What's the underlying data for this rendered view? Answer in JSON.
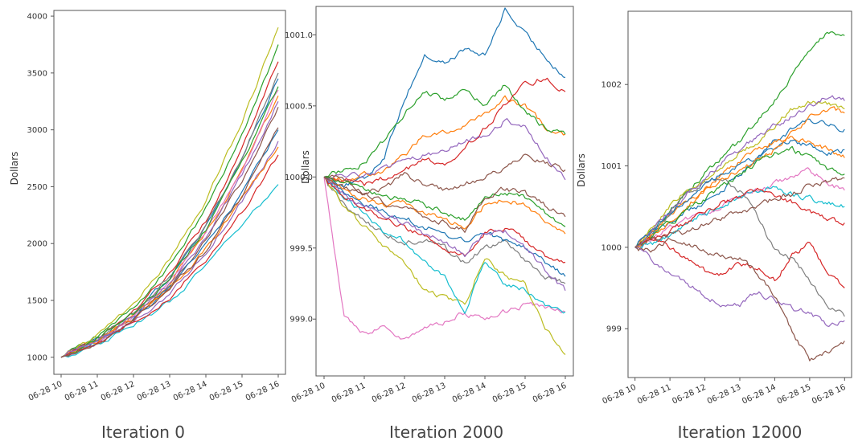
{
  "colors": [
    "#1f77b4",
    "#ff7f0e",
    "#2ca02c",
    "#d62728",
    "#9467bd",
    "#8c564b",
    "#e377c2",
    "#7f7f7f",
    "#bcbd22",
    "#17becf"
  ],
  "chart_data": [
    {
      "type": "line",
      "title": "Iteration 0",
      "ylabel": "Dollars",
      "xlabel": "",
      "xlim": [
        9.8,
        16.2
      ],
      "ylim": [
        850,
        4050
      ],
      "xticks": [
        10,
        11,
        12,
        13,
        14,
        15,
        16
      ],
      "xtick_labels": [
        "06-28 10",
        "06-28 11",
        "06-28 12",
        "06-28 13",
        "06-28 14",
        "06-28 15",
        "06-28 16"
      ],
      "yticks": [
        1000,
        1500,
        2000,
        2500,
        3000,
        3500,
        4000
      ],
      "ytick_labels": [
        "1000",
        "1500",
        "2000",
        "2500",
        "3000",
        "3500",
        "4000"
      ],
      "grid": false,
      "x": [
        10,
        11,
        12,
        13,
        14,
        15,
        16
      ],
      "series": [
        {
          "values": [
            1000,
            1160,
            1380,
            1700,
            2150,
            2750,
            3450
          ]
        },
        {
          "values": [
            1000,
            1150,
            1360,
            1660,
            2100,
            2650,
            3300
          ]
        },
        {
          "values": [
            1000,
            1180,
            1430,
            1800,
            2300,
            2950,
            3750
          ]
        },
        {
          "values": [
            1000,
            1170,
            1400,
            1740,
            2200,
            2820,
            3600
          ]
        },
        {
          "values": [
            1000,
            1130,
            1310,
            1560,
            1920,
            2380,
            2900
          ]
        },
        {
          "values": [
            1000,
            1140,
            1340,
            1630,
            2040,
            2560,
            3200
          ]
        },
        {
          "values": [
            1000,
            1150,
            1370,
            1680,
            2100,
            2660,
            3350
          ]
        },
        {
          "values": [
            1000,
            1160,
            1390,
            1710,
            2170,
            2760,
            3500
          ]
        },
        {
          "values": [
            1000,
            1190,
            1460,
            1850,
            2380,
            3060,
            3900
          ]
        },
        {
          "values": [
            1000,
            1110,
            1270,
            1490,
            1800,
            2150,
            2520
          ]
        },
        {
          "values": [
            1000,
            1140,
            1330,
            1600,
            1980,
            2450,
            3000
          ]
        },
        {
          "values": [
            1000,
            1140,
            1330,
            1590,
            1950,
            2400,
            2850
          ]
        },
        {
          "values": [
            1000,
            1160,
            1380,
            1690,
            2130,
            2700,
            3380
          ]
        },
        {
          "values": [
            1000,
            1120,
            1290,
            1530,
            1860,
            2280,
            2780
          ]
        },
        {
          "values": [
            1000,
            1150,
            1360,
            1650,
            2060,
            2600,
            3250
          ]
        },
        {
          "values": [
            1000,
            1130,
            1320,
            1580,
            1940,
            2420,
            3020
          ]
        }
      ]
    },
    {
      "type": "line",
      "title": "Iteration 2000",
      "ylabel": "Dollars",
      "xlabel": "",
      "xlim": [
        9.8,
        16.2
      ],
      "ylim": [
        998.6,
        1001.2
      ],
      "xticks": [
        10,
        11,
        12,
        13,
        14,
        15,
        16
      ],
      "xtick_labels": [
        "06-28 10",
        "06-28 11",
        "06-28 12",
        "06-28 13",
        "06-28 14",
        "06-28 15",
        "06-28 16"
      ],
      "yticks": [
        999.0,
        999.5,
        1000.0,
        1000.5,
        1001.0
      ],
      "ytick_labels": [
        "999.0",
        "999.5",
        "1000.0",
        "1000.5",
        "1001.0"
      ],
      "grid": false,
      "x": [
        10,
        10.5,
        11,
        11.5,
        12,
        12.5,
        13,
        13.5,
        14,
        14.5,
        15,
        15.5,
        16
      ],
      "series": [
        {
          "values": [
            1000.0,
            999.95,
            999.98,
            1000.15,
            1000.55,
            1000.85,
            1000.8,
            1000.9,
            1000.85,
            1001.18,
            1001.0,
            1000.85,
            1000.7
          ]
        },
        {
          "values": [
            1000.0,
            999.98,
            1000.02,
            1000.05,
            1000.15,
            1000.3,
            1000.32,
            1000.35,
            1000.45,
            1000.55,
            1000.5,
            1000.35,
            1000.3
          ]
        },
        {
          "values": [
            1000.0,
            1000.05,
            1000.1,
            1000.25,
            1000.45,
            1000.6,
            1000.55,
            1000.6,
            1000.5,
            1000.65,
            1000.45,
            1000.35,
            1000.3
          ]
        },
        {
          "values": [
            1000.0,
            999.98,
            999.95,
            999.99,
            1000.05,
            1000.12,
            1000.1,
            1000.2,
            1000.35,
            1000.5,
            1000.65,
            1000.7,
            1000.6
          ]
        },
        {
          "values": [
            1000.0,
            1000.0,
            1000.02,
            1000.05,
            1000.1,
            1000.15,
            1000.2,
            1000.25,
            1000.3,
            1000.4,
            1000.35,
            1000.15,
            999.98
          ]
        },
        {
          "values": [
            1000.0,
            999.98,
            999.9,
            999.92,
            1000.02,
            999.95,
            999.9,
            999.95,
            1000.0,
            1000.05,
            1000.15,
            1000.1,
            1000.05
          ]
        },
        {
          "values": [
            1000.0,
            999.0,
            998.9,
            998.95,
            998.85,
            998.95,
            998.98,
            999.05,
            998.98,
            999.05,
            999.1,
            999.08,
            999.05
          ]
        },
        {
          "values": [
            1000.0,
            999.8,
            999.7,
            999.6,
            999.55,
            999.55,
            999.5,
            999.4,
            999.5,
            999.55,
            999.4,
            999.3,
            999.25
          ]
        },
        {
          "values": [
            1000.0,
            999.8,
            999.65,
            999.5,
            999.4,
            999.2,
            999.15,
            999.1,
            999.45,
            999.3,
            999.25,
            998.95,
            998.75
          ]
        },
        {
          "values": [
            1000.0,
            999.85,
            999.75,
            999.6,
            999.55,
            999.4,
            999.3,
            999.05,
            999.4,
            999.25,
            999.2,
            999.1,
            999.05
          ]
        },
        {
          "values": [
            1000.0,
            999.9,
            999.82,
            999.75,
            999.72,
            999.65,
            999.6,
            999.55,
            999.6,
            999.55,
            999.5,
            999.4,
            999.3
          ]
        },
        {
          "values": [
            1000.0,
            999.9,
            999.85,
            999.8,
            999.82,
            999.75,
            999.7,
            999.65,
            999.8,
            999.85,
            999.8,
            999.7,
            999.6
          ]
        },
        {
          "values": [
            1000.0,
            999.95,
            999.92,
            999.85,
            999.85,
            999.8,
            999.75,
            999.7,
            999.85,
            999.9,
            999.85,
            999.75,
            999.65
          ]
        },
        {
          "values": [
            1000.0,
            999.85,
            999.78,
            999.7,
            999.65,
            999.58,
            999.5,
            999.45,
            999.6,
            999.65,
            999.55,
            999.45,
            999.4
          ]
        },
        {
          "values": [
            1000.0,
            999.88,
            999.8,
            999.72,
            999.68,
            999.6,
            999.55,
            999.45,
            999.6,
            999.62,
            999.5,
            999.35,
            999.2
          ]
        },
        {
          "values": [
            1000.0,
            999.92,
            999.88,
            999.82,
            999.78,
            999.72,
            999.68,
            999.62,
            999.85,
            999.92,
            999.88,
            999.8,
            999.72
          ]
        }
      ]
    },
    {
      "type": "line",
      "title": "Iteration 12000",
      "ylabel": "Dollars",
      "xlabel": "",
      "xlim": [
        9.8,
        16.2
      ],
      "ylim": [
        998.4,
        1002.9
      ],
      "xticks": [
        10,
        11,
        12,
        13,
        14,
        15,
        16
      ],
      "xtick_labels": [
        "06-28 10",
        "06-28 11",
        "06-28 12",
        "06-28 13",
        "06-28 14",
        "06-28 15",
        "06-28 16"
      ],
      "yticks": [
        999,
        1000,
        1001,
        1002
      ],
      "ytick_labels": [
        "999",
        "1000",
        "1001",
        "1002"
      ],
      "grid": false,
      "x": [
        10,
        10.5,
        11,
        11.5,
        12,
        12.5,
        13,
        13.5,
        14,
        14.5,
        15,
        15.5,
        16
      ],
      "series": [
        {
          "values": [
            1000.0,
            1000.15,
            1000.3,
            1000.45,
            1000.55,
            1000.7,
            1000.9,
            1001.1,
            1001.3,
            1001.45,
            1001.55,
            1001.5,
            1001.45
          ]
        },
        {
          "values": [
            1000.0,
            1000.2,
            1000.4,
            1000.55,
            1000.7,
            1000.9,
            1001.05,
            1001.2,
            1001.3,
            1001.35,
            1001.3,
            1001.2,
            1001.1
          ]
        },
        {
          "values": [
            1000.0,
            1000.2,
            1000.45,
            1000.7,
            1000.9,
            1001.1,
            1001.3,
            1001.55,
            1001.8,
            1002.1,
            1002.4,
            1002.65,
            1002.6
          ]
        },
        {
          "values": [
            1000.0,
            1000.1,
            1000.0,
            999.85,
            999.7,
            999.65,
            999.8,
            999.75,
            999.6,
            999.9,
            1000.05,
            999.7,
            999.5
          ]
        },
        {
          "values": [
            1000.0,
            999.85,
            999.65,
            999.55,
            999.4,
            999.3,
            999.3,
            999.45,
            999.35,
            999.25,
            999.2,
            999.05,
            999.1
          ]
        },
        {
          "values": [
            1000.0,
            999.95,
            1000.1,
            1000.05,
            999.95,
            999.9,
            999.85,
            999.7,
            999.4,
            998.95,
            998.6,
            998.7,
            998.85
          ]
        },
        {
          "values": [
            1000.0,
            1000.1,
            1000.25,
            1000.35,
            1000.4,
            1000.5,
            1000.6,
            1000.7,
            1000.8,
            1000.85,
            1000.95,
            1000.8,
            1000.7
          ]
        },
        {
          "values": [
            1000.0,
            1000.2,
            1000.4,
            1000.65,
            1000.8,
            1000.85,
            1000.7,
            1000.4,
            999.95,
            999.85,
            999.6,
            999.3,
            999.15
          ]
        },
        {
          "values": [
            1000.0,
            1000.25,
            1000.5,
            1000.7,
            1000.85,
            1001.0,
            1001.15,
            1001.3,
            1001.5,
            1001.7,
            1001.8,
            1001.75,
            1001.7
          ]
        },
        {
          "values": [
            1000.0,
            1000.05,
            1000.15,
            1000.3,
            1000.4,
            1000.5,
            1000.6,
            1000.7,
            1000.75,
            1000.65,
            1000.6,
            1000.55,
            1000.5
          ]
        },
        {
          "values": [
            1000.0,
            1000.2,
            1000.4,
            1000.6,
            1000.75,
            1000.9,
            1001.0,
            1001.1,
            1001.2,
            1001.3,
            1001.25,
            1001.15,
            1001.2
          ]
        },
        {
          "values": [
            1000.0,
            1000.15,
            1000.3,
            1000.5,
            1000.7,
            1000.85,
            1000.95,
            1001.05,
            1001.2,
            1001.4,
            1001.6,
            1001.7,
            1001.65
          ]
        },
        {
          "values": [
            1000.0,
            1000.15,
            1000.3,
            1000.45,
            1000.6,
            1000.75,
            1000.9,
            1001.05,
            1001.15,
            1001.2,
            1001.1,
            1000.95,
            1000.9
          ]
        },
        {
          "values": [
            1000.0,
            1000.1,
            1000.2,
            1000.3,
            1000.45,
            1000.55,
            1000.6,
            1000.7,
            1000.65,
            1000.55,
            1000.45,
            1000.35,
            1000.3
          ]
        },
        {
          "values": [
            1000.0,
            1000.2,
            1000.45,
            1000.65,
            1000.85,
            1001.05,
            1001.2,
            1001.35,
            1001.5,
            1001.6,
            1001.75,
            1001.85,
            1001.8
          ]
        },
        {
          "values": [
            1000.0,
            1000.1,
            1000.15,
            1000.2,
            1000.3,
            1000.35,
            1000.45,
            1000.5,
            1000.6,
            1000.65,
            1000.75,
            1000.8,
            1000.85
          ]
        }
      ]
    }
  ]
}
